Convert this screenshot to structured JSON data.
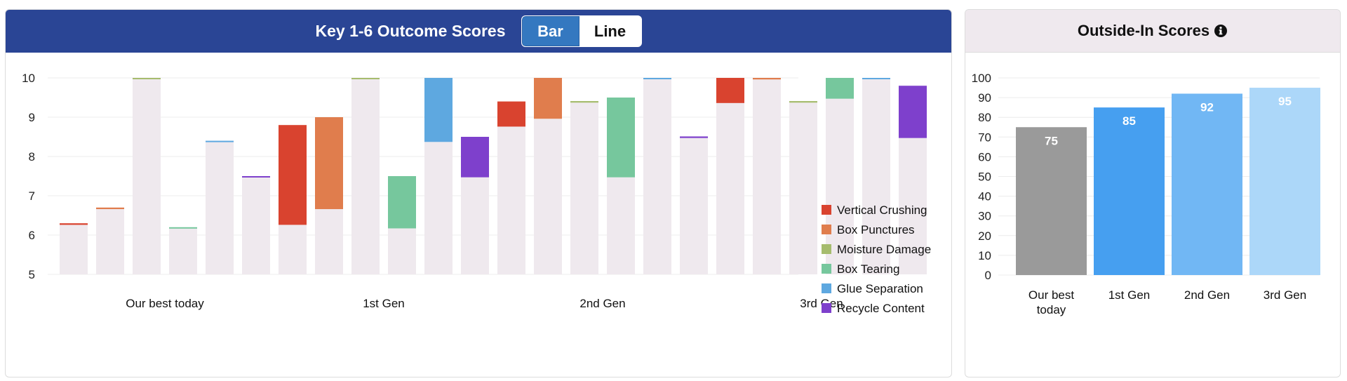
{
  "left_panel": {
    "title": "Key 1-6 Outcome Scores",
    "toggle": {
      "bar_label": "Bar",
      "line_label": "Line",
      "selected": "Bar"
    }
  },
  "right_panel": {
    "title": "Outside-In Scores",
    "info_icon": "info-circle-icon"
  },
  "colors": {
    "header_blue": "#2a4595",
    "toggle_active": "#3478c0",
    "base_fill": "#efe9ee"
  },
  "chart_data": [
    {
      "type": "bar",
      "subtype": "floating-bar",
      "title": "Key 1-6 Outcome Scores",
      "categories": [
        "Our best today",
        "1st Gen",
        "2nd Gen",
        "3rd Gen"
      ],
      "ylim": [
        5,
        10
      ],
      "yticks": [
        5,
        6,
        7,
        8,
        9,
        10
      ],
      "grid": true,
      "legend": "right",
      "series": [
        {
          "name": "Vertical Crushing",
          "color": "#d9432f",
          "ranges": [
            [
              6.26,
              6.3
            ],
            [
              6.26,
              8.8
            ],
            [
              8.76,
              9.4
            ],
            [
              9.36,
              10.0
            ]
          ]
        },
        {
          "name": "Box Punctures",
          "color": "#e07d4d",
          "ranges": [
            [
              6.66,
              6.7
            ],
            [
              6.66,
              9.0
            ],
            [
              8.96,
              10.0
            ],
            [
              9.96,
              10.0
            ]
          ]
        },
        {
          "name": "Moisture Damage",
          "color": "#a6bc6e",
          "ranges": [
            [
              9.97,
              10.0
            ],
            [
              9.97,
              10.0
            ],
            [
              9.37,
              9.41
            ],
            [
              9.37,
              9.41
            ]
          ]
        },
        {
          "name": "Box Tearing",
          "color": "#76c79d",
          "ranges": [
            [
              6.17,
              6.2
            ],
            [
              6.17,
              7.5
            ],
            [
              7.47,
              9.5
            ],
            [
              9.47,
              10.0
            ]
          ]
        },
        {
          "name": "Glue Separation",
          "color": "#5ea8e0",
          "ranges": [
            [
              8.37,
              8.4
            ],
            [
              8.37,
              10.0
            ],
            [
              9.97,
              10.0
            ],
            [
              9.97,
              10.0
            ]
          ]
        },
        {
          "name": "Recycle Content",
          "color": "#7e40cc",
          "ranges": [
            [
              7.47,
              7.5
            ],
            [
              7.47,
              8.5
            ],
            [
              8.47,
              8.51
            ],
            [
              8.47,
              9.8
            ]
          ]
        }
      ]
    },
    {
      "type": "bar",
      "title": "Outside-In Scores",
      "categories": [
        "Our best today",
        "1st Gen",
        "2nd Gen",
        "3rd Gen"
      ],
      "values": [
        75,
        85,
        92,
        95
      ],
      "data_labels": [
        "75",
        "85",
        "92",
        "95"
      ],
      "colors": [
        "#9a9a9a",
        "#469ff0",
        "#71b7f4",
        "#acd7f9"
      ],
      "ylim": [
        0,
        100
      ],
      "yticks": [
        0,
        10,
        20,
        30,
        40,
        50,
        60,
        70,
        80,
        90,
        100
      ],
      "grid": true
    }
  ]
}
